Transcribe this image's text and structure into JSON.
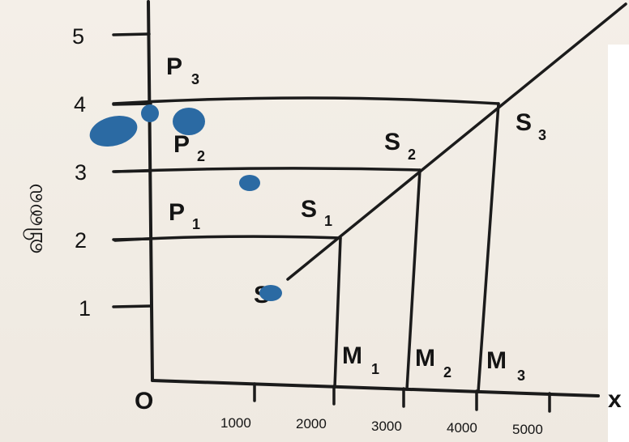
{
  "diagram": {
    "origin_label": "O",
    "x_axis_label": "x",
    "y_axis_label": "விலை",
    "y_ticks": [
      "1",
      "2",
      "3",
      "4",
      "5"
    ],
    "x_ticks": [
      "1000",
      "2000",
      "3000",
      "4000",
      "5000"
    ],
    "price_labels": [
      {
        "main": "P",
        "sub": "1"
      },
      {
        "main": "P",
        "sub": "2"
      },
      {
        "main": "P",
        "sub": "3"
      }
    ],
    "supply_points": [
      {
        "main": "S",
        "sub": "1"
      },
      {
        "main": "S",
        "sub": "2"
      },
      {
        "main": "S",
        "sub": "3"
      }
    ],
    "quantity_labels": [
      {
        "main": "M",
        "sub": "1"
      },
      {
        "main": "M",
        "sub": "2"
      },
      {
        "main": "M",
        "sub": "3"
      }
    ],
    "supply_curve_start_label": "S",
    "ink_color": "#2b6aa3",
    "line_color": "#1b1b1b"
  }
}
